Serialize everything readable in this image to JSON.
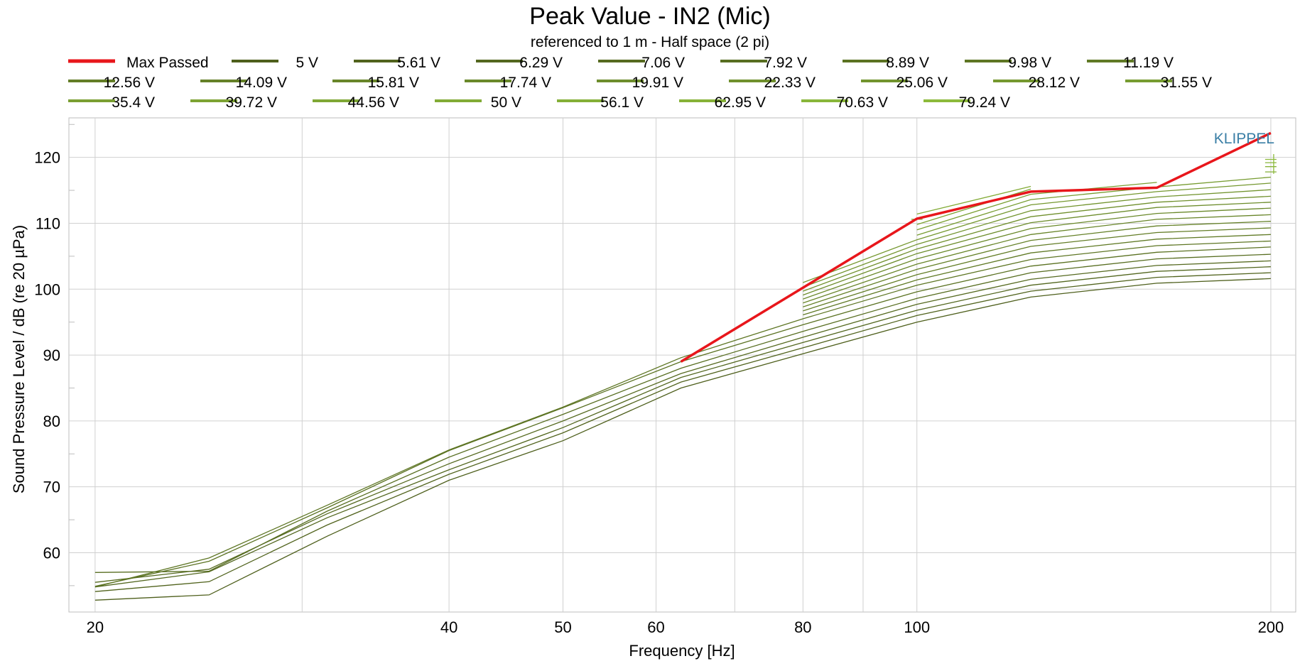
{
  "chart_data": {
    "type": "line",
    "title": "Peak Value - IN2 (Mic)",
    "subtitle": "referenced to 1 m - Half space (2 pi)",
    "xlabel": "Frequency [Hz]",
    "ylabel": "Sound Pressure Level / dB (re 20 µPa)",
    "xscale": "log",
    "xlim": [
      19,
      210
    ],
    "ylim": [
      51,
      126
    ],
    "xticks": [
      20,
      40,
      50,
      60,
      80,
      100,
      200
    ],
    "xgrid": [
      20,
      30,
      40,
      50,
      60,
      70,
      80,
      90,
      100,
      200
    ],
    "yticks": [
      60,
      70,
      80,
      90,
      100,
      110,
      120
    ],
    "grid": true,
    "legend_position": "top",
    "watermark": "KLIPPEL",
    "colors": {
      "max_passed": "#e8161b",
      "dark_green": "#4e5f1c",
      "light_green": "#8cba3b"
    },
    "x_points": [
      20,
      25,
      31.5,
      40,
      50,
      63,
      80,
      100,
      125,
      160,
      200
    ],
    "max_passed": {
      "name": "Max Passed",
      "x": [
        63,
        100,
        125,
        160,
        200
      ],
      "y": [
        89.0,
        110.7,
        114.8,
        115.4,
        123.7
      ]
    },
    "series": [
      {
        "name": "5 V",
        "y": [
          52.8,
          53.6,
          62.5,
          71.0,
          77.0,
          85.0,
          90.2,
          95.0,
          98.8,
          100.9,
          101.6
        ]
      },
      {
        "name": "5.61 V",
        "y": [
          54.1,
          55.6,
          64.2,
          71.9,
          78.2,
          85.9,
          91.1,
          96.0,
          99.7,
          101.8,
          102.5
        ]
      },
      {
        "name": "6.29 V",
        "y": [
          54.8,
          57.1,
          65.3,
          72.6,
          79.0,
          86.6,
          91.9,
          96.8,
          100.6,
          102.7,
          103.4
        ]
      },
      {
        "name": "7.06 V",
        "y": [
          55.5,
          57.5,
          65.9,
          73.5,
          80.0,
          87.2,
          92.7,
          97.7,
          101.5,
          103.6,
          104.3
        ]
      },
      {
        "name": "7.92 V",
        "y": [
          57.0,
          57.2,
          66.3,
          74.5,
          81.0,
          88.0,
          93.6,
          98.6,
          102.5,
          104.6,
          105.3
        ]
      },
      {
        "name": "8.89 V",
        "y": [
          54.9,
          58.7,
          66.8,
          75.5,
          82.0,
          89.0,
          94.6,
          99.6,
          103.5,
          105.6,
          106.4
        ]
      },
      {
        "name": "9.98 V",
        "y": [
          54.8,
          59.2,
          67.2,
          75.6,
          82.1,
          89.6,
          95.5,
          100.6,
          104.5,
          106.6,
          107.3
        ]
      },
      {
        "name": "11.19 V",
        "y": [
          null,
          null,
          null,
          null,
          null,
          null,
          96.1,
          101.4,
          105.5,
          107.6,
          108.3
        ]
      },
      {
        "name": "12.56 V",
        "y": [
          null,
          null,
          null,
          null,
          null,
          null,
          96.7,
          102.2,
          106.5,
          108.6,
          109.3
        ]
      },
      {
        "name": "14.09 V",
        "y": [
          null,
          null,
          null,
          null,
          null,
          null,
          97.3,
          103.0,
          107.4,
          109.6,
          110.3
        ]
      },
      {
        "name": "15.81 V",
        "y": [
          null,
          null,
          null,
          null,
          null,
          null,
          97.9,
          103.8,
          108.3,
          110.6,
          111.3
        ]
      },
      {
        "name": "17.74 V",
        "y": [
          null,
          null,
          null,
          null,
          null,
          null,
          98.5,
          104.6,
          109.2,
          111.5,
          112.3
        ]
      },
      {
        "name": "19.91 V",
        "y": [
          null,
          null,
          null,
          null,
          null,
          null,
          99.1,
          105.4,
          110.1,
          112.4,
          113.2
        ]
      },
      {
        "name": "22.33 V",
        "y": [
          null,
          null,
          null,
          null,
          null,
          null,
          99.7,
          106.1,
          111.0,
          113.2,
          114.1
        ]
      },
      {
        "name": "25.06 V",
        "y": [
          null,
          null,
          null,
          null,
          null,
          null,
          100.3,
          106.8,
          111.9,
          114.0,
          115.1
        ]
      },
      {
        "name": "28.12 V",
        "y": [
          null,
          null,
          null,
          null,
          null,
          null,
          101.0,
          107.5,
          112.8,
          114.8,
          116.1
        ]
      },
      {
        "name": "31.55 V",
        "y": [
          null,
          null,
          null,
          null,
          null,
          null,
          null,
          108.2,
          113.6,
          115.5,
          117.0
        ]
      },
      {
        "name": "35.4 V",
        "y": [
          null,
          null,
          null,
          null,
          null,
          null,
          null,
          109.0,
          114.4,
          116.2,
          null
        ]
      },
      {
        "name": "39.72 V",
        "y": [
          null,
          null,
          null,
          null,
          null,
          null,
          null,
          109.8,
          115.2,
          null,
          null
        ]
      },
      {
        "name": "44.56 V",
        "y": [
          null,
          null,
          null,
          null,
          null,
          null,
          null,
          110.6,
          null,
          null,
          null
        ]
      },
      {
        "name": "50 V",
        "y": [
          null,
          null,
          null,
          null,
          null,
          null,
          null,
          111.4,
          115.6,
          null,
          null
        ]
      },
      {
        "name": "56.1 V",
        "y": [
          null,
          null,
          null,
          null,
          null,
          null,
          null,
          null,
          null,
          null,
          117.8
        ]
      },
      {
        "name": "62.95 V",
        "y": [
          null,
          null,
          null,
          null,
          null,
          null,
          null,
          null,
          null,
          null,
          118.6
        ]
      },
      {
        "name": "70.63 V",
        "y": [
          null,
          null,
          null,
          null,
          null,
          null,
          null,
          null,
          null,
          null,
          119.2
        ]
      },
      {
        "name": "79.24 V",
        "y": [
          null,
          null,
          null,
          null,
          null,
          null,
          null,
          null,
          null,
          null,
          119.7
        ]
      }
    ]
  }
}
